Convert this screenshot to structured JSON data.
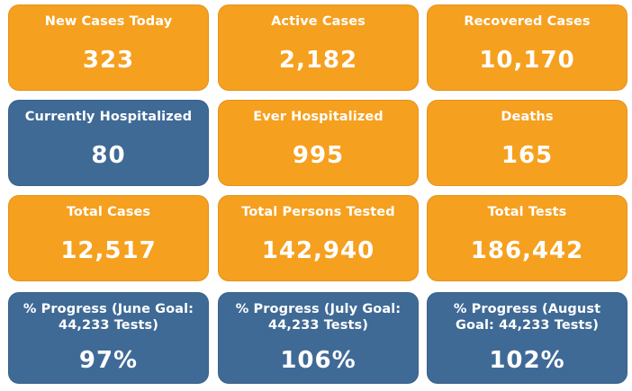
{
  "colors": {
    "orange": "#f6a01f",
    "blue": "#3f6a96",
    "text": "#ffffff"
  },
  "cards": [
    {
      "label": "New Cases Today",
      "value": "323",
      "color": "orange"
    },
    {
      "label": "Active Cases",
      "value": "2,182",
      "color": "orange"
    },
    {
      "label": "Recovered Cases",
      "value": "10,170",
      "color": "orange"
    },
    {
      "label": "Currently Hospitalized",
      "value": "80",
      "color": "blue"
    },
    {
      "label": "Ever Hospitalized",
      "value": "995",
      "color": "orange"
    },
    {
      "label": "Deaths",
      "value": "165",
      "color": "orange"
    },
    {
      "label": "Total Cases",
      "value": "12,517",
      "color": "orange"
    },
    {
      "label": "Total Persons Tested",
      "value": "142,940",
      "color": "orange"
    },
    {
      "label": "Total Tests",
      "value": "186,442",
      "color": "orange"
    },
    {
      "label": "% Progress (June Goal: 44,233 Tests)",
      "value": "97%",
      "color": "blue"
    },
    {
      "label": "% Progress (July Goal: 44,233 Tests)",
      "value": "106%",
      "color": "blue"
    },
    {
      "label": "% Progress (August Goal: 44,233 Tests)",
      "value": "102%",
      "color": "blue"
    }
  ]
}
